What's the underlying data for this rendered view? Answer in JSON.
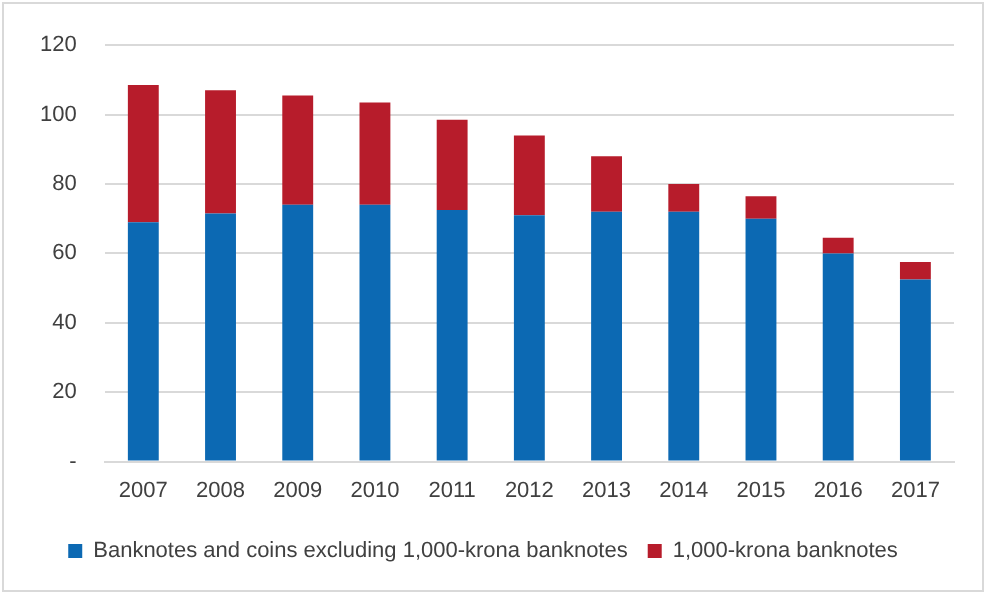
{
  "chart_data": {
    "type": "bar",
    "stacked": true,
    "categories": [
      "2007",
      "2008",
      "2009",
      "2010",
      "2011",
      "2012",
      "2013",
      "2014",
      "2015",
      "2016",
      "2017"
    ],
    "series": [
      {
        "name": "Banknotes and coins excluding 1,000-krona banknotes",
        "color": "#0c69b3",
        "values": [
          69,
          71.5,
          74,
          74,
          72.5,
          71,
          72,
          72,
          70,
          60,
          52.5
        ]
      },
      {
        "name": "1,000-krona banknotes",
        "color": "#b71c2b",
        "values": [
          39.5,
          35.5,
          31.5,
          29.5,
          26,
          23,
          16,
          8,
          6.5,
          4.5,
          5
        ]
      }
    ],
    "ylim": [
      0,
      120
    ],
    "yticks": [
      {
        "value": 0,
        "label": "-"
      },
      20,
      40,
      60,
      80,
      100,
      120
    ],
    "grid": "y",
    "legend": "bottom"
  }
}
